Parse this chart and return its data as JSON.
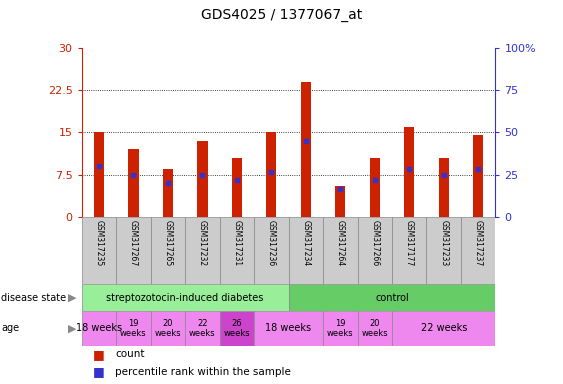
{
  "title": "GDS4025 / 1377067_at",
  "samples": [
    "GSM317235",
    "GSM317267",
    "GSM317265",
    "GSM317232",
    "GSM317231",
    "GSM317236",
    "GSM317234",
    "GSM317264",
    "GSM317266",
    "GSM317177",
    "GSM317233",
    "GSM317237"
  ],
  "count_values": [
    15.0,
    12.0,
    8.5,
    13.5,
    10.5,
    15.0,
    24.0,
    5.5,
    10.5,
    16.0,
    10.5,
    14.5
  ],
  "percentile_values": [
    9.0,
    7.5,
    6.0,
    7.5,
    6.5,
    8.0,
    13.5,
    5.0,
    6.5,
    8.5,
    7.5,
    8.5
  ],
  "ylim_left": [
    0,
    30
  ],
  "ylim_right": [
    0,
    100
  ],
  "yticks_left": [
    0,
    7.5,
    15,
    22.5,
    30
  ],
  "yticks_right": [
    0,
    25,
    50,
    75,
    100
  ],
  "ytick_labels_left": [
    "0",
    "7.5",
    "15",
    "22.5",
    "30"
  ],
  "ytick_labels_right": [
    "0",
    "25",
    "50",
    "75",
    "100%"
  ],
  "bar_color": "#cc2200",
  "square_color": "#3333cc",
  "left_axis_color": "#cc2200",
  "right_axis_color": "#3333cc",
  "bg_color": "#ffffff",
  "tick_label_area_color": "#cccccc",
  "ds_data": [
    {
      "label": "streptozotocin-induced diabetes",
      "span": [
        0,
        5
      ],
      "color": "#99ee99"
    },
    {
      "label": "control",
      "span": [
        6,
        11
      ],
      "color": "#66cc66"
    }
  ],
  "age_data": [
    {
      "label": "18 weeks",
      "span": [
        0,
        0
      ],
      "color": "#ee88ee",
      "fontsize": 7
    },
    {
      "label": "19\nweeks",
      "span": [
        1,
        1
      ],
      "color": "#ee88ee",
      "fontsize": 6
    },
    {
      "label": "20\nweeks",
      "span": [
        2,
        2
      ],
      "color": "#ee88ee",
      "fontsize": 6
    },
    {
      "label": "22\nweeks",
      "span": [
        3,
        3
      ],
      "color": "#ee88ee",
      "fontsize": 6
    },
    {
      "label": "26\nweeks",
      "span": [
        4,
        4
      ],
      "color": "#cc44cc",
      "fontsize": 6
    },
    {
      "label": "18 weeks",
      "span": [
        5,
        6
      ],
      "color": "#ee88ee",
      "fontsize": 7
    },
    {
      "label": "19\nweeks",
      "span": [
        7,
        7
      ],
      "color": "#ee88ee",
      "fontsize": 6
    },
    {
      "label": "20\nweeks",
      "span": [
        8,
        8
      ],
      "color": "#ee88ee",
      "fontsize": 6
    },
    {
      "label": "22 weeks",
      "span": [
        9,
        11
      ],
      "color": "#ee88ee",
      "fontsize": 7
    }
  ],
  "legend_count_label": "count",
  "legend_percentile_label": "percentile rank within the sample",
  "bar_width": 0.3
}
